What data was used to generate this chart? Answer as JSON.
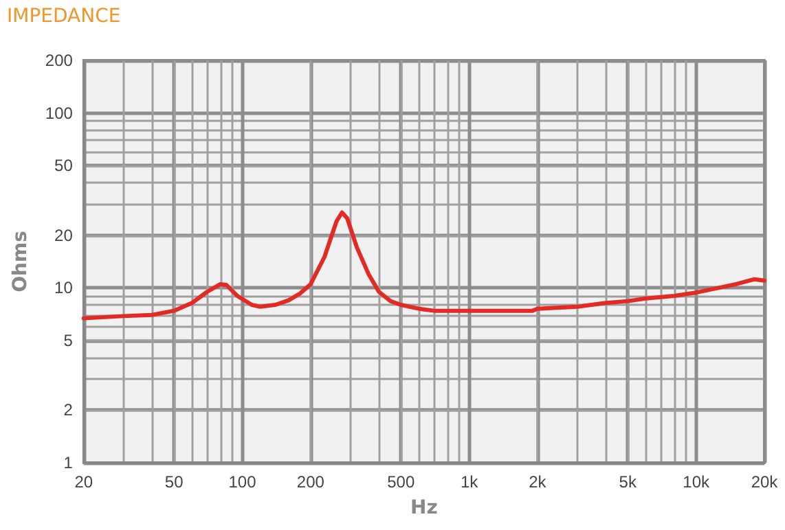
{
  "chart_data": {
    "type": "line",
    "title": "IMPEDANCE",
    "xlabel": "Hz",
    "ylabel": "Ohms",
    "log": "xy",
    "grid": true,
    "marker": "none",
    "line_style": "solid",
    "x": [
      20,
      30,
      40,
      50,
      60,
      70,
      80,
      85,
      95,
      110,
      120,
      140,
      160,
      180,
      200,
      230,
      260,
      275,
      290,
      320,
      360,
      400,
      450,
      500,
      600,
      700,
      1000,
      1500,
      1900,
      2000,
      3000,
      4000,
      5000,
      6000,
      8000,
      10000,
      15000,
      18000,
      20000
    ],
    "series": [
      {
        "color": "#e32b25",
        "values": [
          6.7,
          6.9,
          7.0,
          7.4,
          8.2,
          9.5,
          10.5,
          10.4,
          9.0,
          8.0,
          7.8,
          8.0,
          8.5,
          9.3,
          10.5,
          15,
          24,
          27,
          25,
          17,
          12,
          9.5,
          8.4,
          8.0,
          7.6,
          7.4,
          7.4,
          7.4,
          7.4,
          7.6,
          7.8,
          8.2,
          8.4,
          8.7,
          9.0,
          9.4,
          10.5,
          11.2,
          11.0
        ]
      }
    ],
    "xlim": [
      20,
      20000
    ],
    "xticks": [
      20,
      50,
      100,
      200,
      500,
      {
        "value": 1000,
        "label": "1k"
      },
      {
        "value": 2000,
        "label": "2k"
      },
      {
        "value": 5000,
        "label": "5k"
      },
      {
        "value": 10000,
        "label": "10k"
      },
      {
        "value": 20000,
        "label": "20k"
      }
    ],
    "ylim": [
      1,
      200
    ],
    "yticks": [
      1,
      2,
      5,
      10,
      20,
      50,
      100,
      200
    ]
  }
}
